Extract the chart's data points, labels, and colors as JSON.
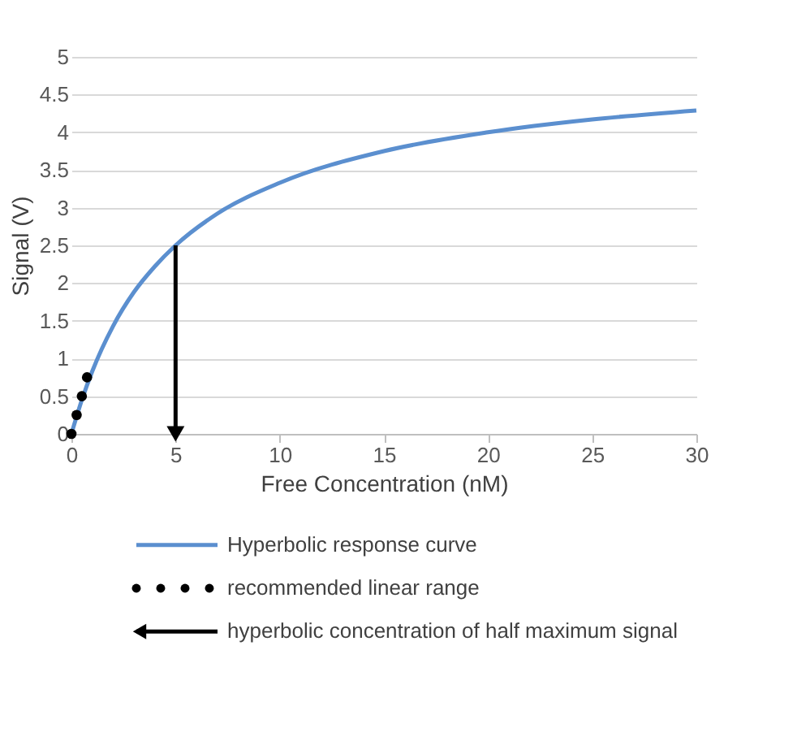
{
  "chart_data": {
    "type": "line",
    "xlabel": "Free Concentration (nM)",
    "ylabel": "Signal (V)",
    "xlim": [
      0,
      30
    ],
    "xticks": [
      0,
      5,
      10,
      15,
      20,
      25,
      30
    ],
    "ylim": [
      0,
      5
    ],
    "yticks": [
      0,
      0.5,
      1,
      1.5,
      2,
      2.5,
      3,
      3.5,
      4,
      4.5,
      5
    ],
    "grid": "y",
    "legend": "bottom",
    "series": [
      {
        "name": "Hyperbolic response curve",
        "color": "#5b8fcf",
        "x": [
          0,
          0.5,
          1,
          2,
          3,
          4,
          5,
          7,
          10,
          15,
          20,
          25,
          30
        ],
        "values": [
          0,
          0.45,
          0.83,
          1.43,
          1.88,
          2.22,
          2.5,
          2.92,
          3.33,
          3.75,
          4,
          4.17,
          4.29
        ]
      },
      {
        "name": "recommended linear range",
        "type": "scatter",
        "marker": "circle",
        "color": "#000000",
        "x": [
          0,
          0.25,
          0.5,
          0.75
        ],
        "values": [
          0,
          0.25,
          0.5,
          0.75
        ]
      },
      {
        "name": "hyperbolic concentration of half maximum signal",
        "type": "line",
        "marker": "triangle",
        "color": "#000000",
        "x": [
          5,
          5
        ],
        "values": [
          2.5,
          0
        ]
      }
    ]
  }
}
